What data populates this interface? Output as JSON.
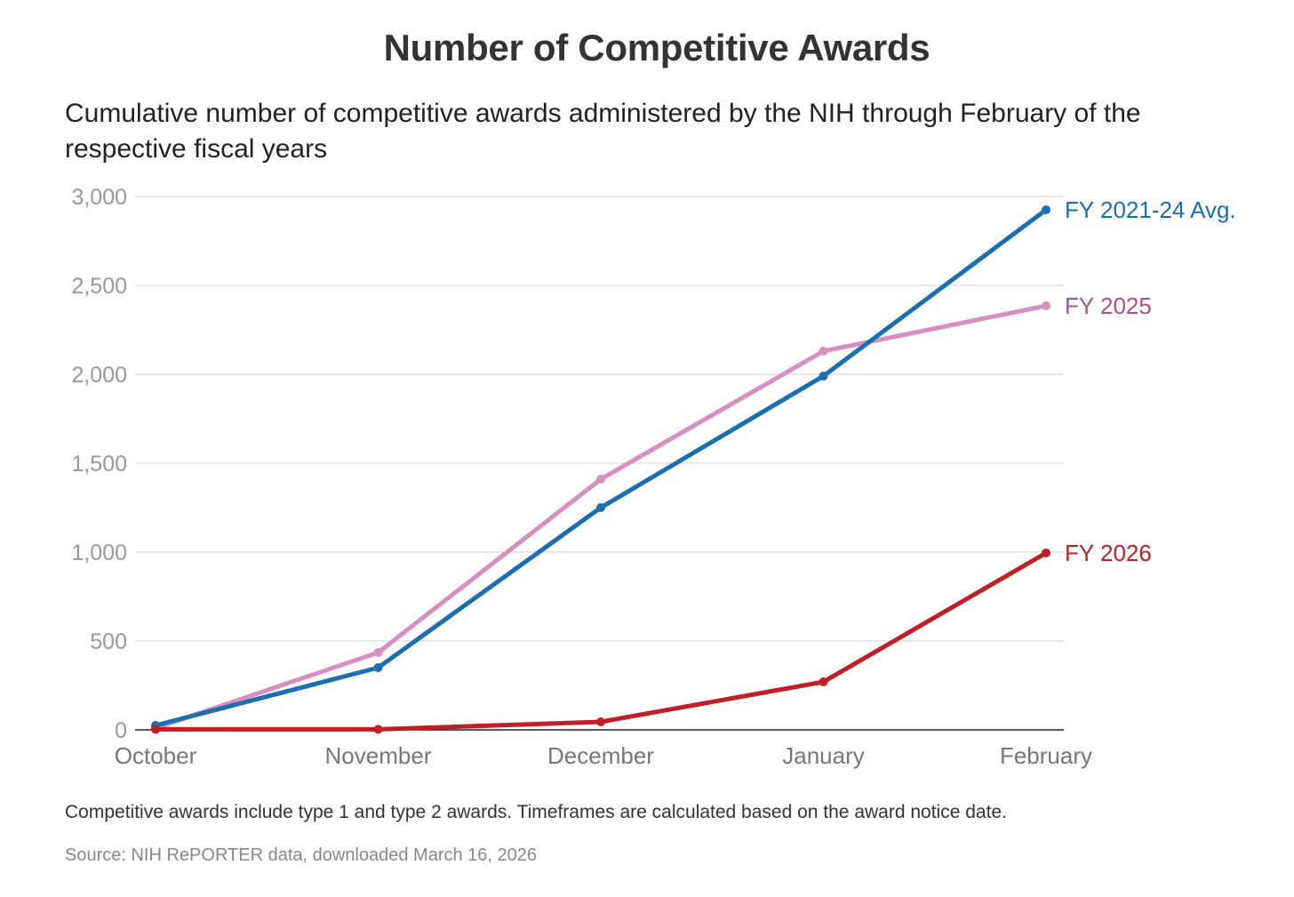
{
  "chart_data": {
    "type": "line",
    "title": "Number of Competitive Awards",
    "subtitle": "Cumulative number of competitive awards administered by the NIH through February of the respective fiscal years",
    "categories": [
      "October",
      "November",
      "December",
      "January",
      "February"
    ],
    "y_ticks": [
      "0",
      "500",
      "1,000",
      "1,500",
      "2,000",
      "2,500",
      "3,000"
    ],
    "ylim": [
      0,
      3000
    ],
    "grid": true,
    "legend": "direct labels at line ends",
    "series": [
      {
        "name": "FY 2021-24 Avg.",
        "color": "#1a6faf",
        "values": [
          25,
          350,
          1250,
          1990,
          2925
        ]
      },
      {
        "name": "FY 2025",
        "color": "#d98ec3",
        "label_color": "#a8508e",
        "values": [
          10,
          435,
          1410,
          2130,
          2385
        ]
      },
      {
        "name": "FY 2026",
        "color": "#c21f24",
        "values": [
          3,
          3,
          45,
          270,
          995
        ]
      }
    ],
    "note": "Competitive awards include type 1 and type 2 awards. Timeframes are calculated based on the award notice date.",
    "source": "Source: NIH RePORTER data, downloaded March 16, 2026"
  }
}
